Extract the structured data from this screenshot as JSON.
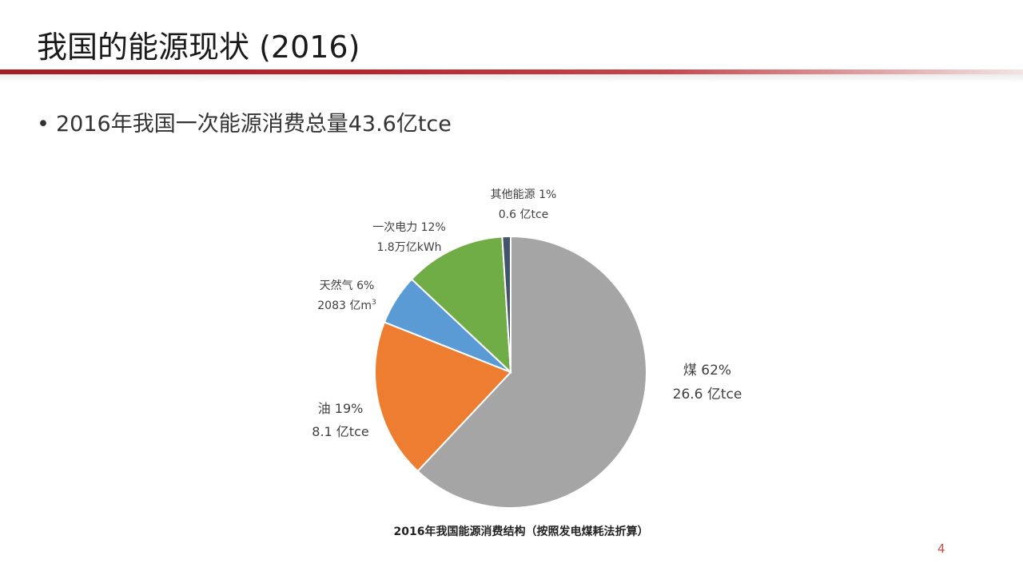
{
  "slide": {
    "title": "我国的能源现状 (2016)",
    "bullet_symbol": "•",
    "bullet_text": "2016年我国一次能源消费总量43.6亿tce",
    "page_number": "4",
    "title_bar_color": "#b51f27"
  },
  "chart_data": {
    "type": "pie",
    "title": "2016年我国能源消费结构（按照发电煤耗法折算）",
    "start_angle_deg": 0,
    "direction": "clockwise",
    "slices": [
      {
        "label": "煤",
        "percent_label": "62%",
        "value": 62,
        "amount": "26.6 亿tce",
        "amount_sup": "",
        "color": "#a5a5a5"
      },
      {
        "label": "油",
        "percent_label": "19%",
        "value": 19,
        "amount": "8.1 亿tce",
        "amount_sup": "",
        "color": "#ed7d31"
      },
      {
        "label": "天然气",
        "percent_label": "6%",
        "value": 6,
        "amount": "2083 亿m",
        "amount_sup": "3",
        "color": "#5b9bd5"
      },
      {
        "label": "一次电力",
        "percent_label": "12%",
        "value": 12,
        "amount": "1.8万亿kWh",
        "amount_sup": "",
        "color": "#70ad47"
      },
      {
        "label": "其他能源",
        "percent_label": "1%",
        "value": 1,
        "amount": "0.6 亿tce",
        "amount_sup": "",
        "color": "#44546a"
      }
    ],
    "total": 100,
    "legend": "none"
  }
}
